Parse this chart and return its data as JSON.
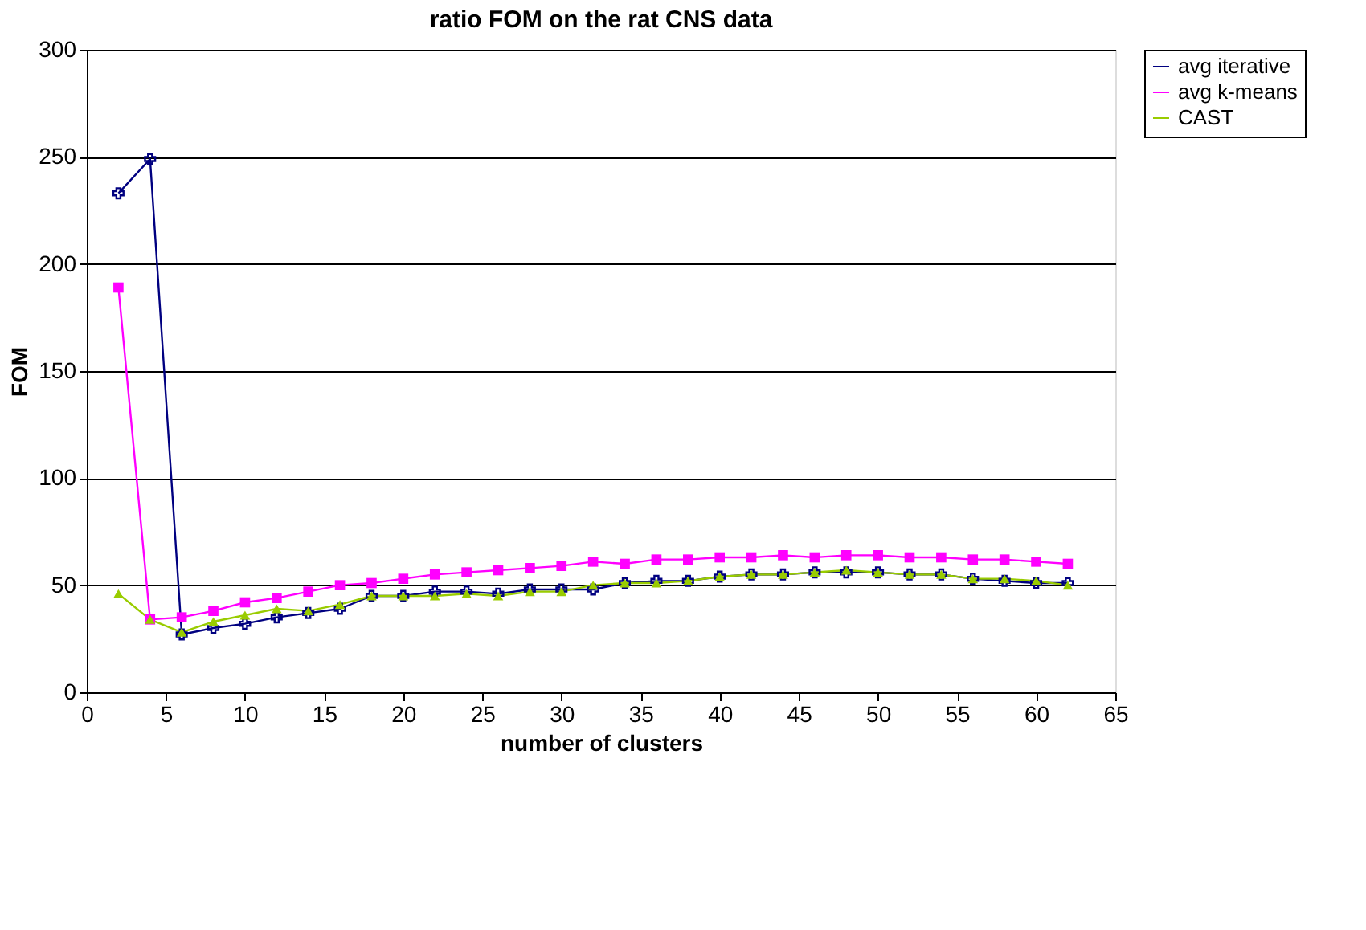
{
  "chart_data": {
    "type": "line",
    "title": "ratio FOM on the rat CNS data",
    "xlabel": "number of clusters",
    "ylabel": "FOM",
    "x": [
      2,
      4,
      6,
      8,
      10,
      12,
      14,
      16,
      18,
      20,
      22,
      24,
      26,
      28,
      30,
      32,
      34,
      36,
      38,
      40,
      42,
      44,
      46,
      48,
      50,
      52,
      54,
      56,
      58,
      60,
      62
    ],
    "series": [
      {
        "name": "avg iterative",
        "color": "#000080",
        "marker": "cross",
        "values": [
          233,
          249,
          27,
          30,
          32,
          35,
          37,
          39,
          45,
          45,
          47,
          47,
          46,
          48,
          48,
          48,
          51,
          52,
          52,
          54,
          55,
          55,
          56,
          56,
          56,
          55,
          55,
          53,
          52,
          51,
          51
        ]
      },
      {
        "name": "avg k-means",
        "color": "#ff00ff",
        "marker": "square",
        "values": [
          189,
          34,
          35,
          38,
          42,
          44,
          47,
          50,
          51,
          53,
          55,
          56,
          57,
          58,
          59,
          61,
          60,
          62,
          62,
          63,
          63,
          64,
          63,
          64,
          64,
          63,
          63,
          62,
          62,
          61,
          60
        ]
      },
      {
        "name": "CAST",
        "color": "#99cc00",
        "marker": "triangle",
        "values": [
          46,
          34,
          28,
          33,
          36,
          39,
          38,
          41,
          45,
          45,
          45,
          46,
          45,
          47,
          47,
          50,
          51,
          51,
          52,
          54,
          55,
          55,
          56,
          57,
          56,
          55,
          55,
          53,
          53,
          52,
          50
        ]
      }
    ],
    "xlim": [
      0,
      65
    ],
    "xticks": [
      0,
      5,
      10,
      15,
      20,
      25,
      30,
      35,
      40,
      45,
      50,
      55,
      60,
      65
    ],
    "ylim": [
      0,
      300
    ],
    "yticks": [
      0,
      50,
      100,
      150,
      200,
      250,
      300
    ],
    "grid": "y",
    "legend": "right",
    "line_style": "solid"
  }
}
